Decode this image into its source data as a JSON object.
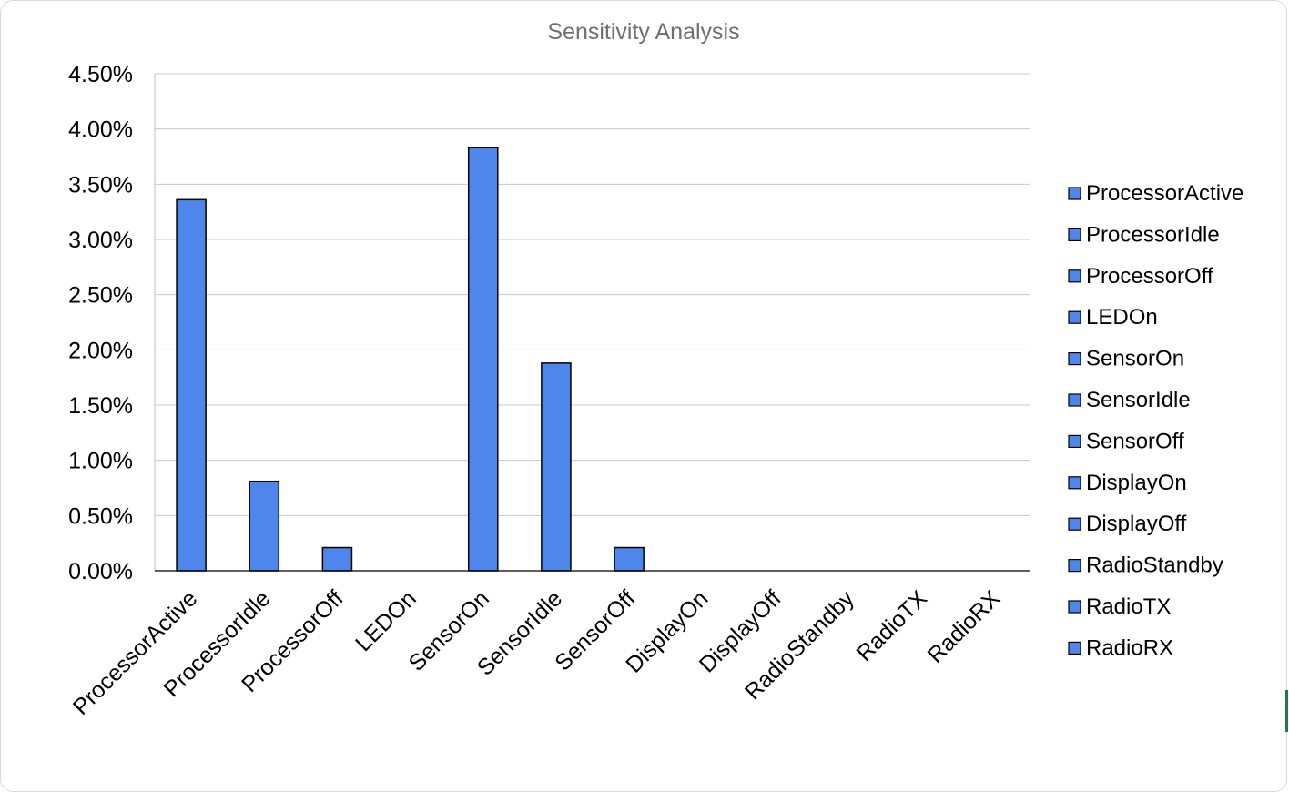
{
  "chart_data": {
    "type": "bar",
    "title": "Sensitivity Analysis",
    "xlabel": "",
    "ylabel": "",
    "categories": [
      "ProcessorActive",
      "ProcessorIdle",
      "ProcessorOff",
      "LEDOn",
      "SensorOn",
      "SensorIdle",
      "SensorOff",
      "DisplayOn",
      "DisplayOff",
      "RadioStandby",
      "RadioTX",
      "RadioRX"
    ],
    "values": [
      3.36,
      0.81,
      0.21,
      0,
      3.83,
      1.88,
      0.21,
      0,
      0,
      0,
      0,
      0
    ],
    "value_unit": "%",
    "ylim": [
      0,
      4.5
    ],
    "y_ticks": [
      "0.00%",
      "0.50%",
      "1.00%",
      "1.50%",
      "2.00%",
      "2.50%",
      "3.00%",
      "3.50%",
      "4.00%",
      "4.50%"
    ],
    "grid": true,
    "legend": {
      "position": "right",
      "entries": [
        "ProcessorActive",
        "ProcessorIdle",
        "ProcessorOff",
        "LEDOn",
        "SensorOn",
        "SensorIdle",
        "SensorOff",
        "DisplayOn",
        "DisplayOff",
        "RadioStandby",
        "RadioTX",
        "RadioRX"
      ]
    },
    "colors": {
      "bar": "#4f86ec",
      "bar_outline": "#000000",
      "grid": "#c8c8c8",
      "title": "#6f6f6f",
      "text": "#000000"
    }
  }
}
